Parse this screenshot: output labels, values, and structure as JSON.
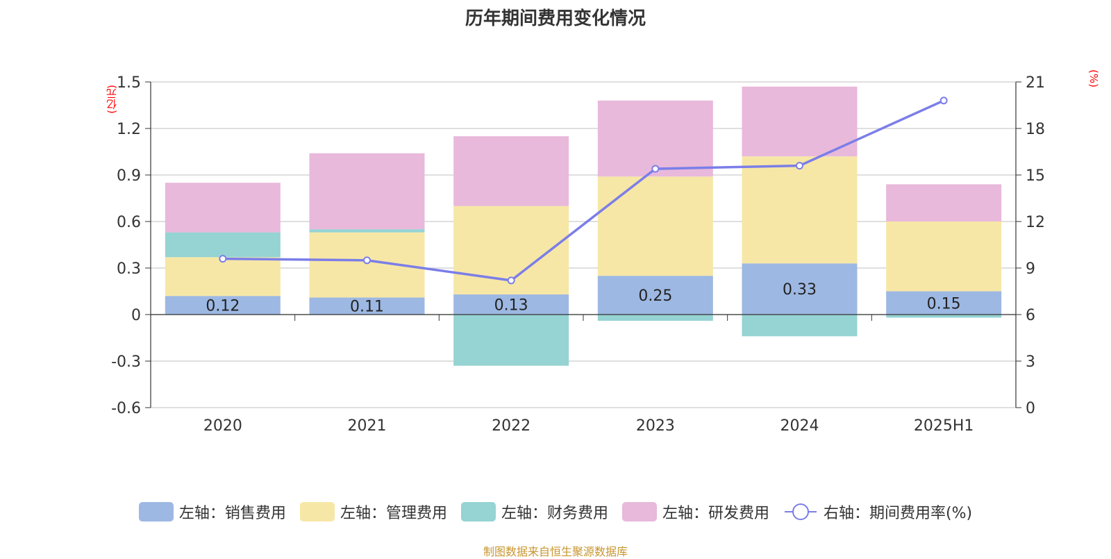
{
  "title": "历年期间费用变化情况",
  "source": "制图数据来自恒生聚源数据库",
  "chart_data": {
    "type": "bar",
    "stacked": true,
    "categories": [
      "2020",
      "2021",
      "2022",
      "2023",
      "2024",
      "2025H1"
    ],
    "left_axis": {
      "unit": "(亿元)",
      "ticks": [
        "1.5",
        "1.2",
        "0.9",
        "0.6",
        "0.3",
        "0",
        "-0.3",
        "-0.6"
      ],
      "ylim": [
        -0.6,
        1.5
      ]
    },
    "right_axis": {
      "unit": "(%)",
      "ticks": [
        "21",
        "18",
        "15",
        "12",
        "9",
        "6",
        "3",
        "0"
      ],
      "ylim": [
        0,
        21
      ]
    },
    "series": [
      {
        "name": "左轴：销售费用",
        "color": "#9db8e2",
        "values": [
          0.12,
          0.11,
          0.13,
          0.25,
          0.33,
          0.15
        ],
        "labels": [
          "0.12",
          "0.11",
          "0.13",
          "0.25",
          "0.33",
          "0.15"
        ]
      },
      {
        "name": "左轴：管理费用",
        "color": "#f7e7a6",
        "values": [
          0.25,
          0.42,
          0.57,
          0.64,
          0.69,
          0.45
        ]
      },
      {
        "name": "左轴：财务费用",
        "color": "#96d3d3",
        "values": [
          0.16,
          0.02,
          -0.33,
          -0.04,
          -0.14,
          -0.02
        ]
      },
      {
        "name": "左轴：研发费用",
        "color": "#e8b9db",
        "values": [
          0.32,
          0.49,
          0.45,
          0.49,
          0.45,
          0.24
        ]
      }
    ],
    "line": {
      "name": "右轴：期间费用率(%)",
      "color": "#7b7ee8",
      "values": [
        9.6,
        9.5,
        8.2,
        15.4,
        15.6,
        19.8
      ]
    },
    "grid": true,
    "legend_position": "bottom"
  }
}
